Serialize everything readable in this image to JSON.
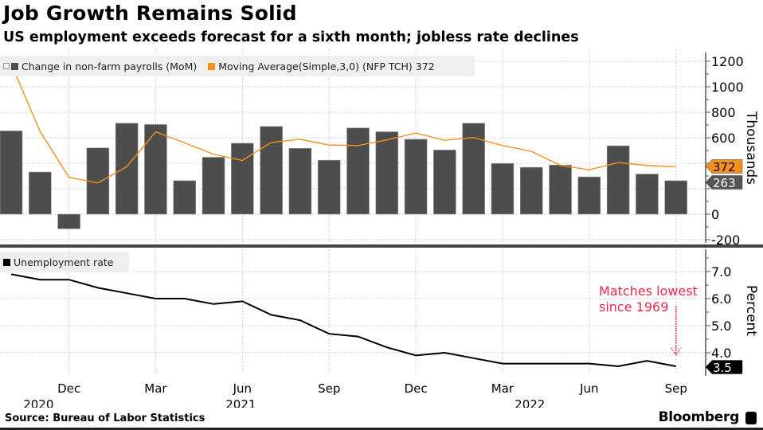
{
  "header": {
    "title": "Job Growth Remains Solid",
    "subtitle": "US employment exceeds forecast for a sixth month; jobless rate declines"
  },
  "footer": {
    "source": "Source: Bureau of Labor Statistics",
    "brand": "Bloomberg"
  },
  "colors": {
    "bar": "#4d4d4d",
    "moving_average": "#f5901e",
    "unemployment_line": "#000000",
    "annotation": "#e8274b",
    "legend_bg": "#efefef"
  },
  "chart_data": [
    {
      "type": "bar",
      "title": "Change in non-farm payrolls",
      "ylabel": "Thousands",
      "ylim": [
        -250,
        1250
      ],
      "yticks": [
        -200,
        0,
        200,
        400,
        600,
        800,
        1000,
        1200
      ],
      "ytick_labels": [
        "-200",
        "0",
        "",
        "",
        "600",
        "800",
        "1000",
        "1200"
      ],
      "grid": true,
      "legend_position": "top-left",
      "x": [
        "2020-10",
        "2020-11",
        "2020-12",
        "2021-01",
        "2021-02",
        "2021-03",
        "2021-04",
        "2021-05",
        "2021-06",
        "2021-07",
        "2021-08",
        "2021-09",
        "2021-10",
        "2021-11",
        "2021-12",
        "2022-01",
        "2022-02",
        "2022-03",
        "2022-04",
        "2022-05",
        "2022-06",
        "2022-07",
        "2022-08",
        "2022-09"
      ],
      "series": [
        {
          "name": "Change in non-farm payrolls (MoM)",
          "type": "bar",
          "values": [
            654,
            331,
            -115,
            520,
            714,
            704,
            263,
            447,
            557,
            689,
            517,
            424,
            677,
            647,
            588,
            504,
            714,
            398,
            368,
            386,
            293,
            537,
            315,
            263
          ],
          "last_value_label": "263"
        },
        {
          "name": "Moving Average(Simple,3,0) (NFP TCH) 372",
          "type": "line",
          "values": [
            1180,
            650,
            290,
            245,
            373,
            646,
            560,
            471,
            422,
            564,
            588,
            543,
            539,
            583,
            637,
            580,
            602,
            539,
            493,
            384,
            349,
            405,
            382,
            372
          ],
          "last_value_label": "372"
        }
      ]
    },
    {
      "type": "line",
      "title": "Unemployment rate",
      "ylabel": "Percent",
      "ylim": [
        3.2,
        7.9
      ],
      "yticks": [
        4.0,
        5.0,
        6.0,
        7.0
      ],
      "ytick_labels": [
        "4.0",
        "5.0",
        "6.0",
        "7.0"
      ],
      "grid": true,
      "legend_position": "top-left",
      "x": [
        "2020-10",
        "2020-11",
        "2020-12",
        "2021-01",
        "2021-02",
        "2021-03",
        "2021-04",
        "2021-05",
        "2021-06",
        "2021-07",
        "2021-08",
        "2021-09",
        "2021-10",
        "2021-11",
        "2021-12",
        "2022-01",
        "2022-02",
        "2022-03",
        "2022-04",
        "2022-05",
        "2022-06",
        "2022-07",
        "2022-08",
        "2022-09"
      ],
      "series": [
        {
          "name": "Unemployment rate",
          "values": [
            6.9,
            6.7,
            6.7,
            6.4,
            6.2,
            6.0,
            6.0,
            5.8,
            5.9,
            5.4,
            5.2,
            4.7,
            4.6,
            4.2,
            3.9,
            4.0,
            3.8,
            3.6,
            3.6,
            3.6,
            3.6,
            3.5,
            3.7,
            3.5
          ],
          "last_value_label": "3.5"
        }
      ],
      "annotation": {
        "text_line1": "Matches lowest",
        "text_line2": "since 1969",
        "target": "2022-09"
      }
    }
  ],
  "x_axis": {
    "tick_labels": [
      "Dec",
      "Mar",
      "Jun",
      "Sep",
      "Dec",
      "Mar",
      "Jun",
      "Sep"
    ],
    "tick_months": [
      "2020-12",
      "2021-03",
      "2021-06",
      "2021-09",
      "2021-12",
      "2022-03",
      "2022-06",
      "2022-09"
    ],
    "year_labels": [
      {
        "label": "2020",
        "month": "2020-11"
      },
      {
        "label": "2021",
        "month": "2021-06"
      },
      {
        "label": "2022",
        "month": "2022-04"
      }
    ]
  }
}
